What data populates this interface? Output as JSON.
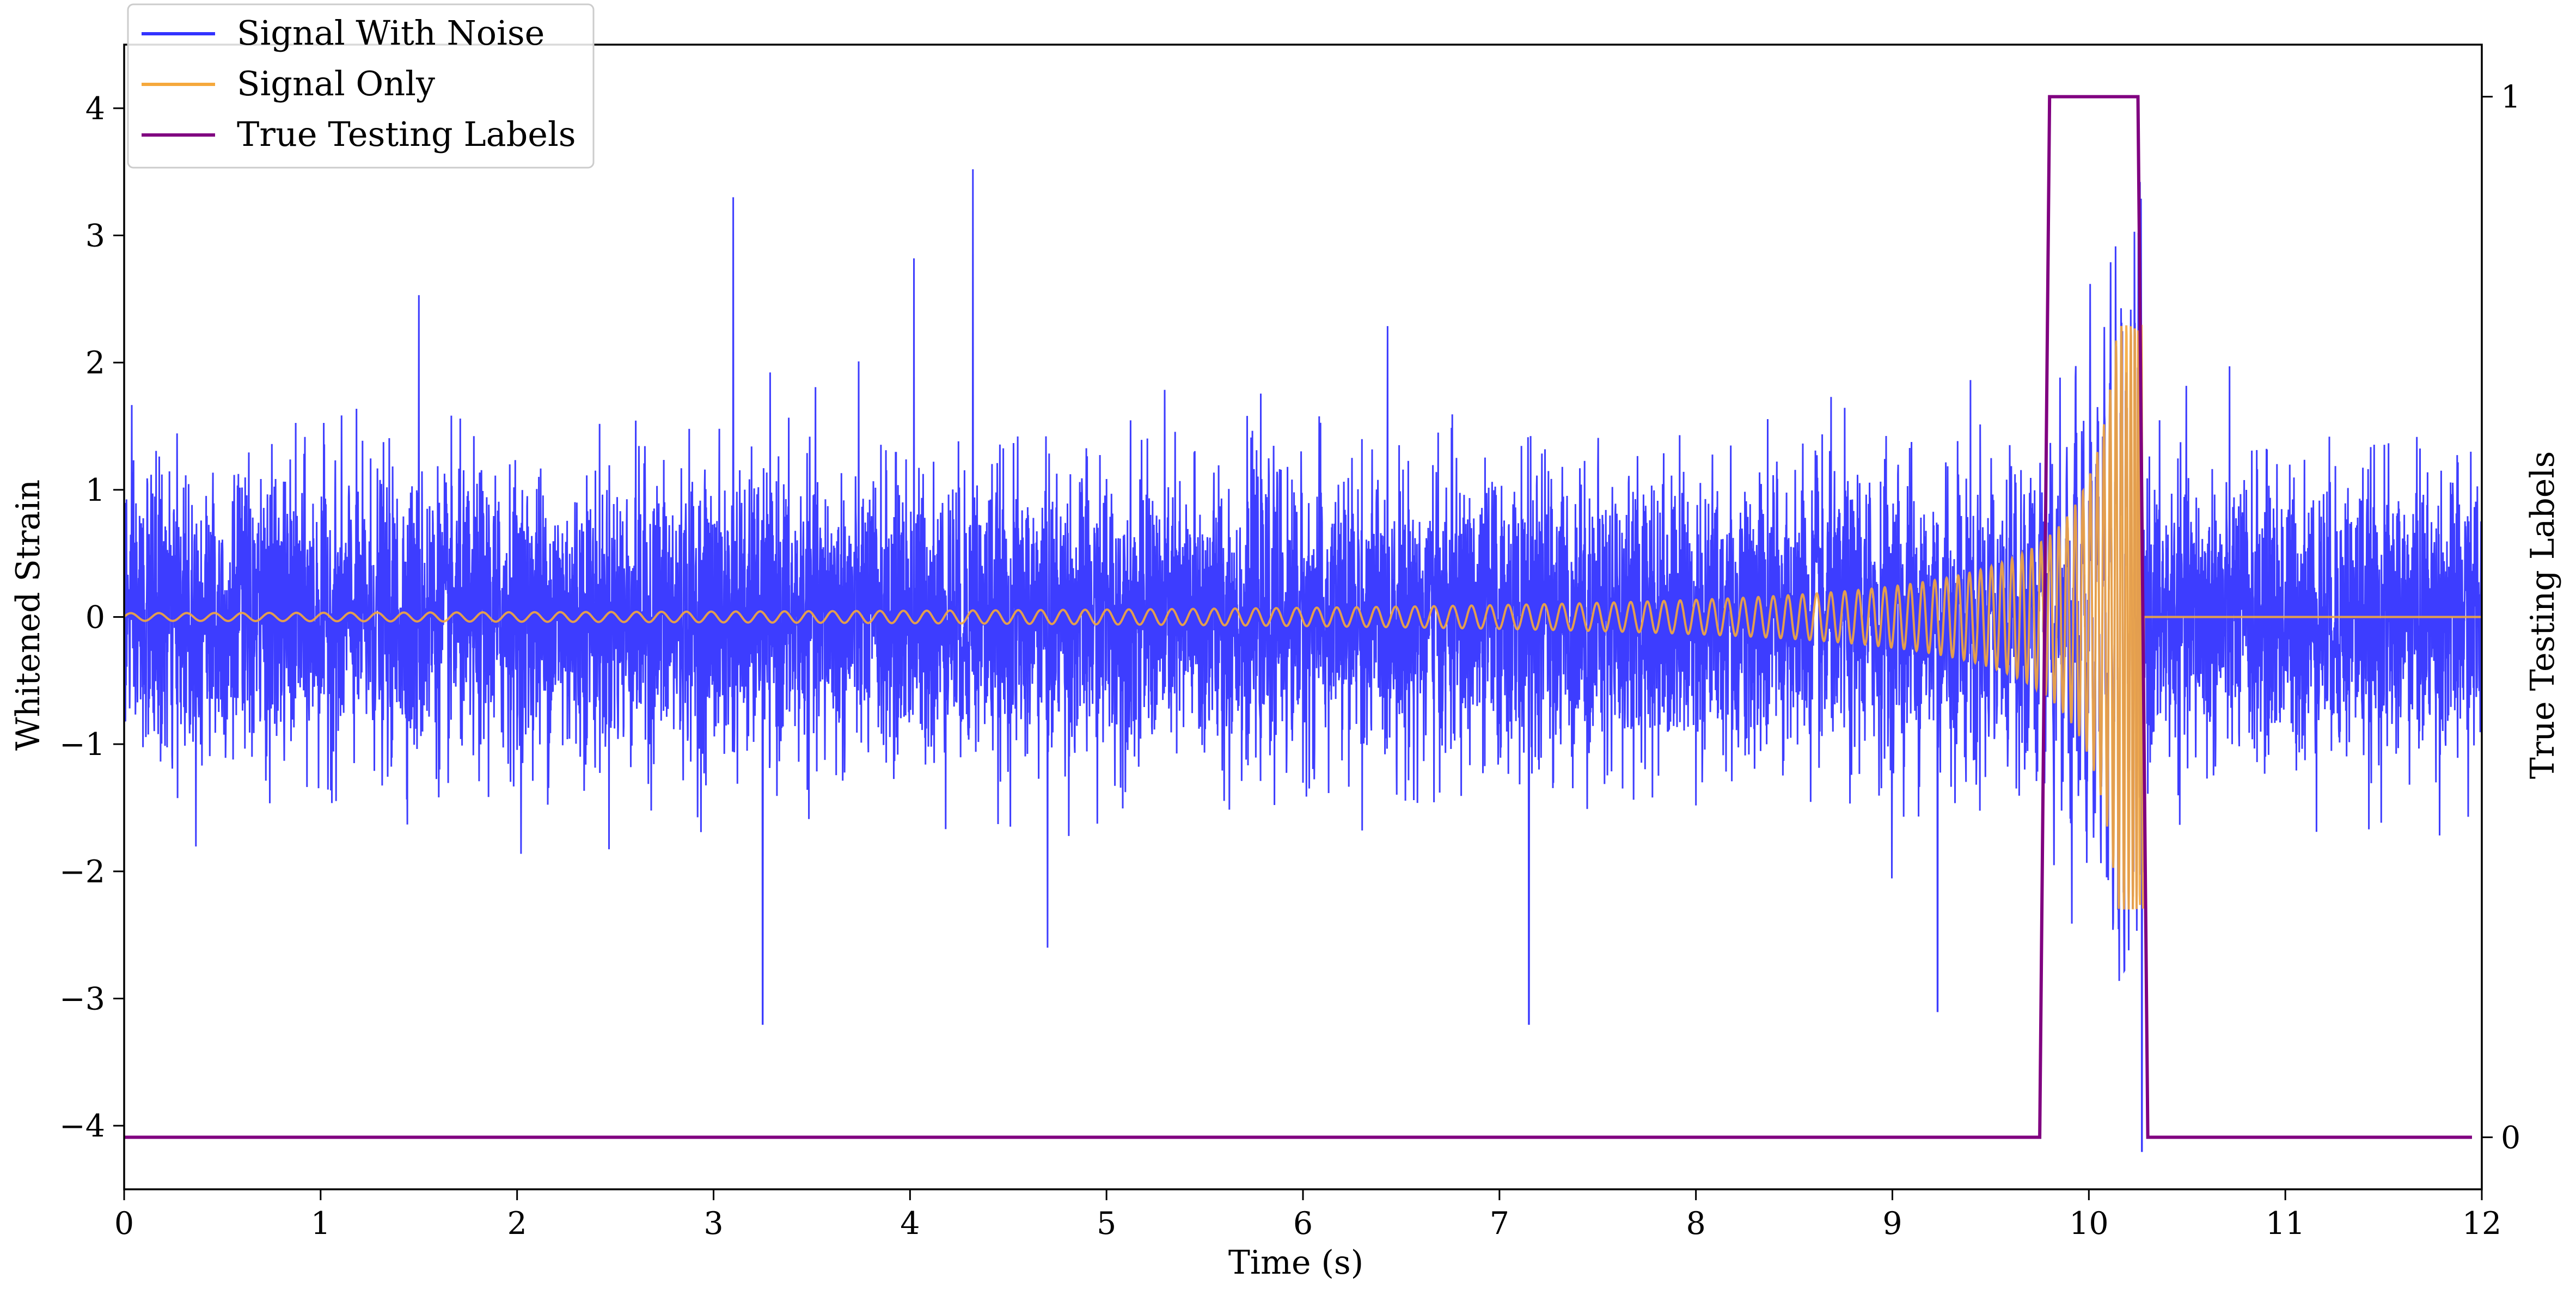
{
  "chart_data": {
    "type": "line",
    "title": "",
    "xlabel": "Time (s)",
    "ylabel": "Whitened Strain",
    "y2label": "True Testing Labels",
    "xlim": [
      0,
      12
    ],
    "ylim": [
      -4.5,
      4.5
    ],
    "y2lim": [
      -0.05,
      1.05
    ],
    "xticks": [
      0,
      1,
      2,
      3,
      4,
      5,
      6,
      7,
      8,
      9,
      10,
      11,
      12
    ],
    "xtick_labels": [
      "0",
      "1",
      "2",
      "3",
      "4",
      "5",
      "6",
      "7",
      "8",
      "9",
      "10",
      "11",
      "12"
    ],
    "yticks": [
      4,
      3,
      2,
      1,
      0,
      -1,
      -2,
      -3,
      -4
    ],
    "ytick_labels": [
      "4",
      "3",
      "2",
      "1",
      "0",
      "−1",
      "−2",
      "−3",
      "−4"
    ],
    "y2ticks": [
      1,
      0
    ],
    "y2tick_labels": [
      "1",
      "0"
    ],
    "grid": false,
    "legend_position": "upper-left",
    "noise_sigma": 0.55,
    "noise_spikes": [
      {
        "x": 3.1,
        "y": 3.3
      },
      {
        "x": 4.32,
        "y": 3.52
      },
      {
        "x": 3.25,
        "y": -3.2
      },
      {
        "x": 7.15,
        "y": -3.2
      },
      {
        "x": 10.26,
        "y": 3.42
      },
      {
        "x": 10.27,
        "y": -4.2
      },
      {
        "x": 9.23,
        "y": -3.1
      },
      {
        "x": 1.5,
        "y": 2.53
      },
      {
        "x": 4.02,
        "y": 2.82
      },
      {
        "x": 4.7,
        "y": -2.6
      }
    ],
    "chirp": {
      "start_amplitude": 0.03,
      "merger_time": 10.28,
      "peak_amplitude": 2.3,
      "start_frequency_hz": 7,
      "end_frequency_hz": 60
    },
    "series": [
      {
        "name": "Signal With Noise",
        "color": "#3333ff"
      },
      {
        "name": "Signal Only",
        "color": "#f5a83c"
      },
      {
        "name": "True Testing Labels",
        "color": "#800080",
        "x": [
          0,
          9.75,
          9.8,
          10.25,
          10.3,
          11.95
        ],
        "y": [
          0,
          0,
          1,
          1,
          0,
          0
        ]
      }
    ]
  }
}
